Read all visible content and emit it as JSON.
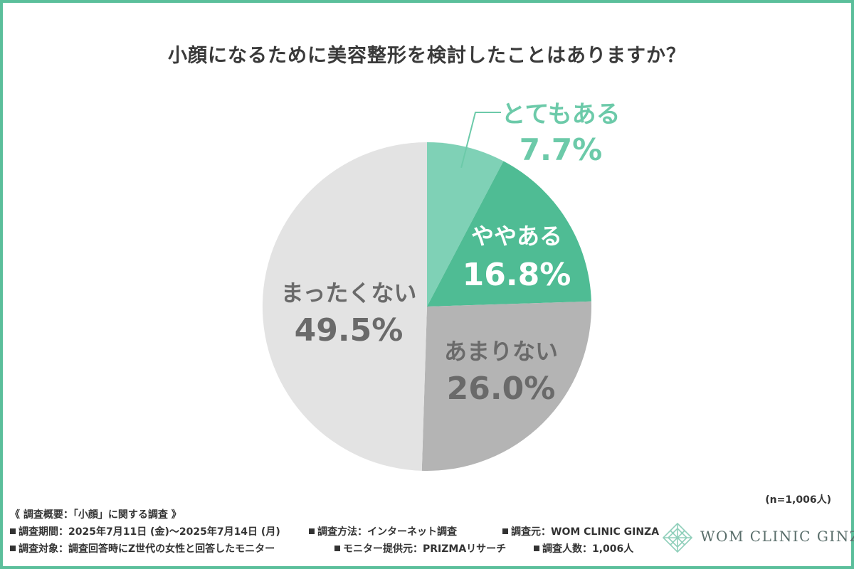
{
  "chart_data": {
    "type": "pie",
    "title": "小顔になるために美容整形を検討したことはありますか？",
    "slices": [
      {
        "label": "とてもある",
        "value": 7.7,
        "value_label": "7.7%",
        "color": "#7fd1b6",
        "label_color": "#6ccaa9"
      },
      {
        "label": "ややある",
        "value": 16.8,
        "value_label": "16.8%",
        "color": "#4fbc94",
        "label_color": "#ffffff"
      },
      {
        "label": "あまりない",
        "value": 26.0,
        "value_label": "26.0%",
        "color": "#b4b4b4",
        "label_color": "#6a6a6a"
      },
      {
        "label": "まったくない",
        "value": 49.5,
        "value_label": "49.5%",
        "color": "#e3e3e3",
        "label_color": "#6a6a6a"
      }
    ],
    "start": "12 o'clock",
    "direction": "clockwise"
  },
  "sample_size": "(n=1,006人)",
  "survey": {
    "header": "《 調査概要：「小顔」に関する調査 》",
    "period": "調査期間：2025年7月11日 (金)〜2025年7月14日 (月)",
    "method": "調査方法：インターネット調査",
    "source": "調査元：WOM CLINIC GINZA",
    "target": "調査対象：調査回答時にZ世代の女性と回答したモニター",
    "provider": "モニター提供元：PRIZMAリサーチ",
    "count": "調査人数：1,006人"
  },
  "logo": {
    "text": "WOM CLINIC GINZA",
    "icon": "diamond-lattice-icon"
  },
  "colors": {
    "frame": "#5bbf9b",
    "accent": "#4fbc94"
  }
}
